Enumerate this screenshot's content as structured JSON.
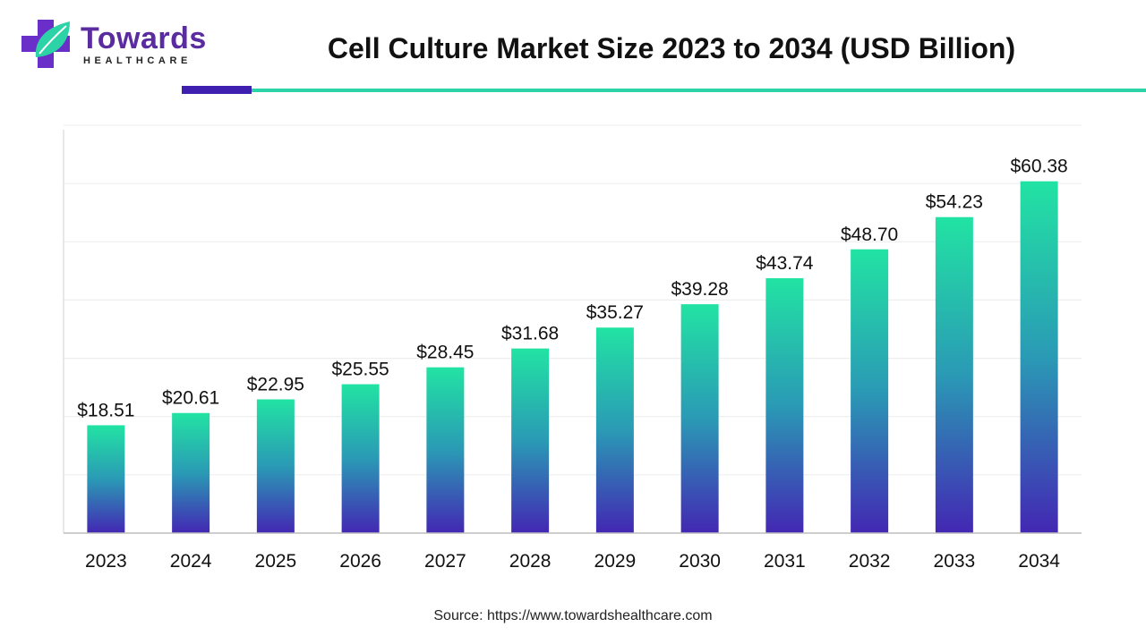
{
  "logo": {
    "name": "Towards",
    "subtitle": "HEALTHCARE",
    "icon": "medical-cross-leaf-icon",
    "colors": {
      "purple": "#6b2fc9",
      "teal": "#2bd3a6"
    }
  },
  "header": {
    "title": "Cell Culture Market Size 2023 to 2034 (USD Billion)",
    "accent_dark": "#3f1fb0",
    "accent_teal": "#2bd3a6"
  },
  "chart_data": {
    "type": "bar",
    "categories": [
      "2023",
      "2024",
      "2025",
      "2026",
      "2027",
      "2028",
      "2029",
      "2030",
      "2031",
      "2032",
      "2033",
      "2034"
    ],
    "values": [
      18.51,
      20.61,
      22.95,
      25.55,
      28.45,
      31.68,
      35.27,
      39.28,
      43.74,
      48.7,
      54.23,
      60.38
    ],
    "value_labels": [
      "$18.51",
      "$20.61",
      "$22.95",
      "$25.55",
      "$28.45",
      "$31.68",
      "$35.27",
      "$39.28",
      "$43.74",
      "$48.70",
      "$54.23",
      "$60.38"
    ],
    "title": "Cell Culture Market Size 2023 to 2034 (USD Billion)",
    "xlabel": "",
    "ylabel": "",
    "ylim": [
      0,
      70
    ],
    "grid": true,
    "legend": "none",
    "bar_gradient": {
      "top": "#22e3a3",
      "middle": "#2a9ab5",
      "bottom": "#4327b3"
    }
  },
  "footer": {
    "source": "Source: https://www.towardshealthcare.com"
  }
}
